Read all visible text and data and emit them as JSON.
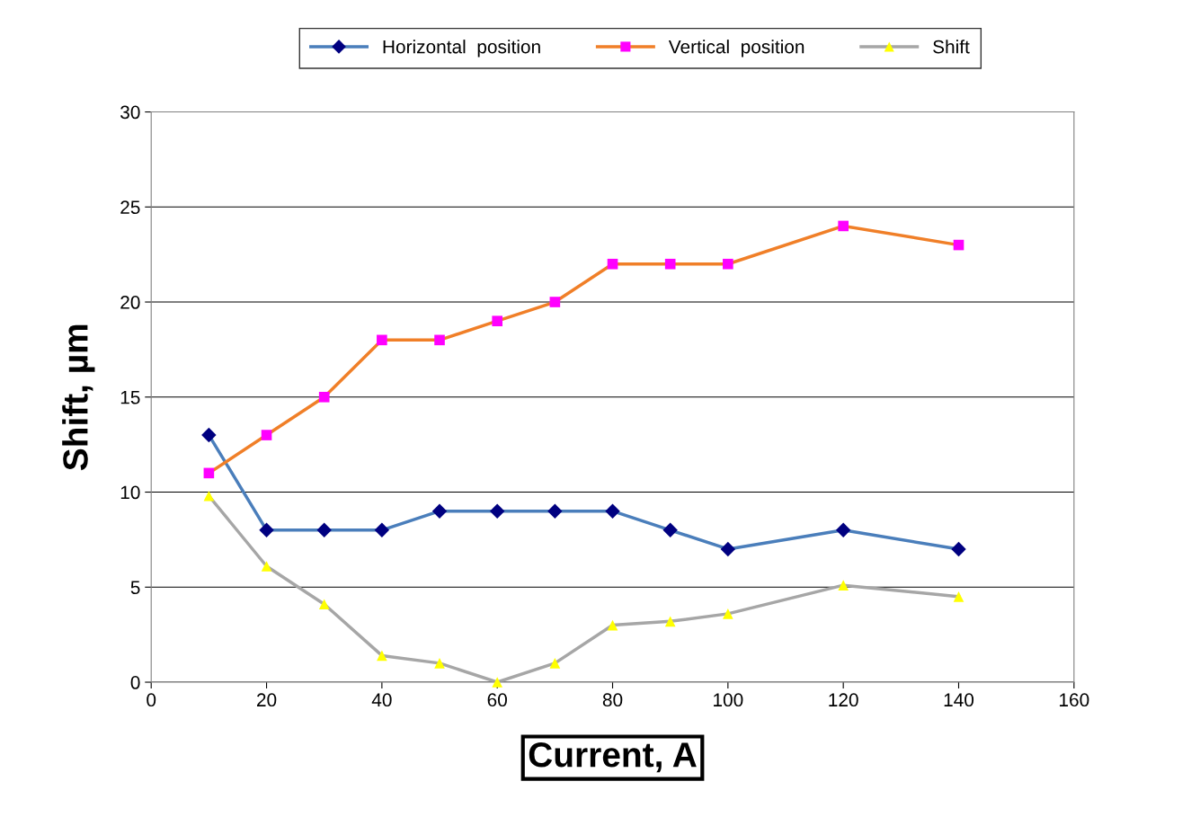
{
  "chart_data": {
    "type": "line",
    "xlabel": "Current, A",
    "ylabel": "Shift, µm",
    "x": [
      10,
      20,
      30,
      40,
      50,
      60,
      70,
      80,
      90,
      100,
      120,
      140
    ],
    "xlim": [
      0,
      160
    ],
    "xticks": [
      0,
      20,
      40,
      60,
      80,
      100,
      120,
      140,
      160
    ],
    "ylim": [
      0,
      30
    ],
    "yticks": [
      0,
      5,
      10,
      15,
      20,
      25,
      30
    ],
    "grid": "y",
    "legend": "top",
    "line_style": "solid",
    "series": [
      {
        "name": "Horizontal  position",
        "color": "#4a7ebb",
        "marker": "diamond",
        "colors": [
          "#000080",
          "#000080",
          "#000080",
          "#000080",
          "#000080",
          "#000080",
          "#000080",
          "#000080",
          "#000080",
          "#000080",
          "#000080",
          "#000080"
        ],
        "values": [
          13,
          8,
          8,
          8,
          9,
          9,
          9,
          9,
          8,
          7,
          8,
          7
        ]
      },
      {
        "name": "Vertical  position",
        "color": "#f07f28",
        "marker": "square",
        "colors": [
          "#ff00ff",
          "#ff00ff",
          "#ff00ff",
          "#ff00ff",
          "#ff00ff",
          "#ff00ff",
          "#ff00ff",
          "#ff00ff",
          "#ff00ff",
          "#ff00ff",
          "#ff00ff",
          "#ff00ff"
        ],
        "values": [
          11,
          13,
          15,
          18,
          18,
          19,
          20,
          22,
          22,
          22,
          24,
          23
        ]
      },
      {
        "name": "Shift",
        "color": "#a6a6a6",
        "marker": "triangle",
        "colors": [
          "#ffff00",
          "#ffff00",
          "#ffff00",
          "#ffff00",
          "#ffff00",
          "#ffff00",
          "#ffff00",
          "#ffff00",
          "#ffff00",
          "#ffff00",
          "#ffff00",
          "#ffff00"
        ],
        "values": [
          9.8,
          6.1,
          4.1,
          1.4,
          1.0,
          0,
          1.0,
          3.0,
          3.2,
          3.6,
          5.1,
          4.5
        ]
      }
    ]
  }
}
